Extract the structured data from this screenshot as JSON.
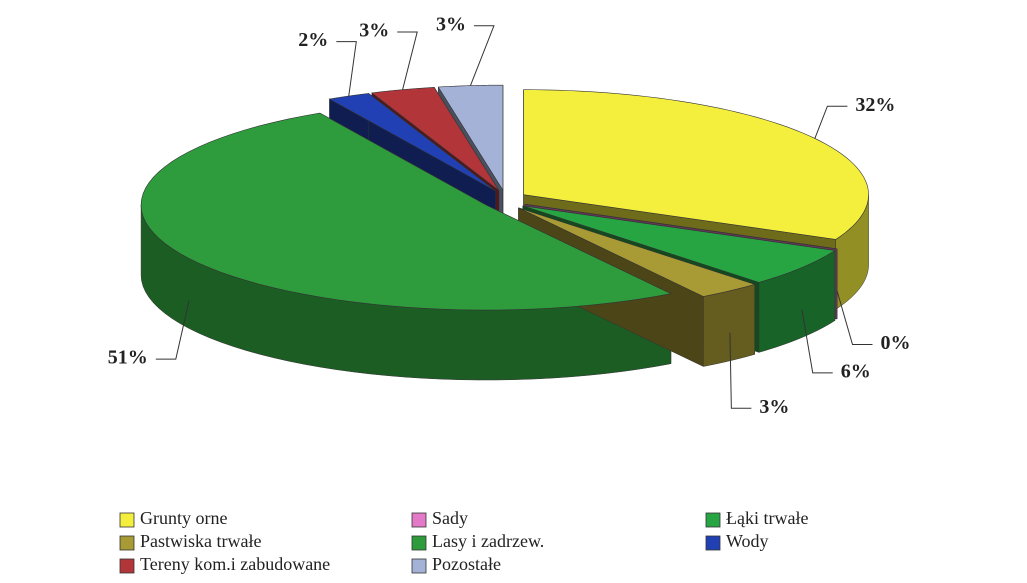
{
  "chart_data": {
    "type": "pie3d",
    "series": [
      {
        "name": "Grunty orne",
        "color": "#f4ee3c"
      },
      {
        "name": "Sady",
        "color": "#e27ac8"
      },
      {
        "name": "Łąki trwałe",
        "color": "#27a543"
      },
      {
        "name": "Pastwiska trwałe",
        "color": "#a89a34"
      },
      {
        "name": "Lasy i zadrzew.",
        "color": "#2e9b3c"
      },
      {
        "name": "Wody",
        "color": "#2140b4"
      },
      {
        "name": "Tereny kom.i zabudowane",
        "color": "#b2353a"
      },
      {
        "name": "Pozostałe",
        "color": "#a3b2d6"
      }
    ],
    "values": [
      32,
      0,
      6,
      3,
      51,
      2,
      3,
      3
    ],
    "value_labels": [
      "32%",
      "0%",
      "6%",
      "3%",
      "51%",
      "2%",
      "3%",
      "3%"
    ],
    "legend": "bottom"
  }
}
